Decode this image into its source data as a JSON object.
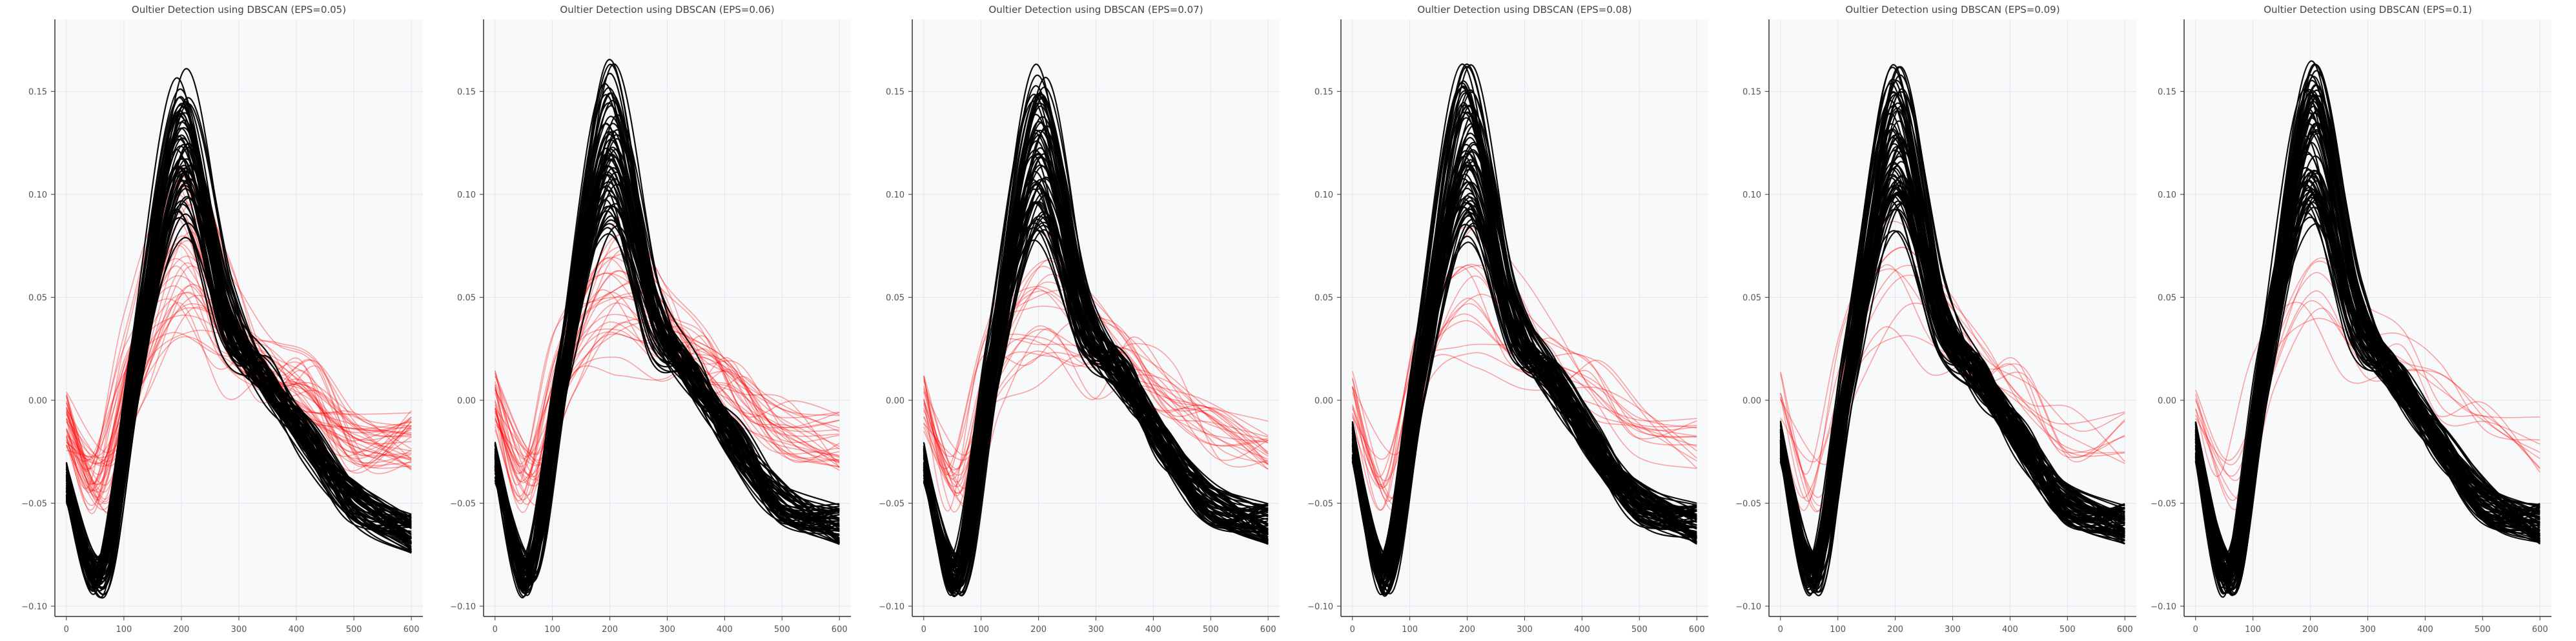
{
  "chart_data": [
    {
      "type": "line",
      "title": "Oultier Detection using DBSCAN (EPS=0.05)",
      "xlabel": "",
      "ylabel": "",
      "xlim": [
        -20,
        620
      ],
      "ylim": [
        -0.105,
        0.185
      ],
      "xticks": [
        "0",
        "100",
        "200",
        "300",
        "400",
        "500",
        "600"
      ],
      "yticks": [
        "−0.10",
        "−0.05",
        "0.00",
        "0.05",
        "0.10",
        "0.15"
      ],
      "grid": true,
      "series_colors": {
        "inlier": "#000000",
        "outlier": "#ff0000"
      },
      "series": [
        {
          "name": "",
          "role": "inlier",
          "count": 60,
          "points": [
            [
              0,
              -0.04
            ],
            [
              60,
              -0.085
            ],
            [
              120,
              0.02
            ],
            [
              200,
              0.15
            ],
            [
              280,
              0.05
            ],
            [
              350,
              0.01
            ],
            [
              420,
              -0.02
            ],
            [
              500,
              -0.05
            ],
            [
              600,
              -0.065
            ]
          ]
        },
        {
          "name": "",
          "role": "outlier",
          "count": 40,
          "points": [
            [
              0,
              -0.01
            ],
            [
              60,
              -0.04
            ],
            [
              120,
              0.02
            ],
            [
              200,
              0.08
            ],
            [
              280,
              0.04
            ],
            [
              350,
              0.015
            ],
            [
              420,
              0.005
            ],
            [
              500,
              -0.02
            ],
            [
              600,
              -0.02
            ]
          ]
        }
      ]
    },
    {
      "type": "line",
      "title": "Oultier Detection using DBSCAN (EPS=0.06)",
      "xlabel": "",
      "ylabel": "",
      "xlim": [
        -20,
        620
      ],
      "ylim": [
        -0.105,
        0.185
      ],
      "xticks": [
        "0",
        "100",
        "200",
        "300",
        "400",
        "500",
        "600"
      ],
      "yticks": [
        "−0.10",
        "−0.05",
        "0.00",
        "0.05",
        "0.10",
        "0.15"
      ],
      "grid": true,
      "series_colors": {
        "inlier": "#000000",
        "outlier": "#ff0000"
      },
      "series": [
        {
          "name": "",
          "role": "inlier",
          "count": 60,
          "points": [
            [
              0,
              -0.03
            ],
            [
              60,
              -0.085
            ],
            [
              120,
              0.02
            ],
            [
              200,
              0.15
            ],
            [
              280,
              0.05
            ],
            [
              350,
              0.01
            ],
            [
              420,
              -0.02
            ],
            [
              500,
              -0.05
            ],
            [
              600,
              -0.06
            ]
          ]
        },
        {
          "name": "",
          "role": "outlier",
          "count": 30,
          "points": [
            [
              0,
              0.0
            ],
            [
              60,
              -0.04
            ],
            [
              120,
              0.02
            ],
            [
              200,
              0.06
            ],
            [
              280,
              0.04
            ],
            [
              350,
              0.02
            ],
            [
              420,
              0.005
            ],
            [
              500,
              -0.015
            ],
            [
              600,
              -0.02
            ]
          ]
        }
      ]
    },
    {
      "type": "line",
      "title": "Oultier Detection using DBSCAN (EPS=0.07)",
      "xlabel": "",
      "ylabel": "",
      "xlim": [
        -20,
        620
      ],
      "ylim": [
        -0.105,
        0.185
      ],
      "xticks": [
        "0",
        "100",
        "200",
        "300",
        "400",
        "500",
        "600"
      ],
      "yticks": [
        "−0.10",
        "−0.05",
        "0.00",
        "0.05",
        "0.10",
        "0.15"
      ],
      "grid": true,
      "series_colors": {
        "inlier": "#000000",
        "outlier": "#ff0000"
      },
      "series": [
        {
          "name": "",
          "role": "inlier",
          "count": 65,
          "points": [
            [
              0,
              -0.03
            ],
            [
              60,
              -0.085
            ],
            [
              120,
              0.02
            ],
            [
              200,
              0.15
            ],
            [
              280,
              0.05
            ],
            [
              350,
              0.01
            ],
            [
              420,
              -0.02
            ],
            [
              500,
              -0.05
            ],
            [
              600,
              -0.06
            ]
          ]
        },
        {
          "name": "",
          "role": "outlier",
          "count": 22,
          "points": [
            [
              0,
              0.0
            ],
            [
              60,
              -0.04
            ],
            [
              120,
              0.02
            ],
            [
              200,
              0.05
            ],
            [
              280,
              0.04
            ],
            [
              350,
              0.02
            ],
            [
              420,
              0.005
            ],
            [
              500,
              -0.015
            ],
            [
              600,
              -0.02
            ]
          ]
        }
      ]
    },
    {
      "type": "line",
      "title": "Oultier Detection using DBSCAN (EPS=0.08)",
      "xlabel": "",
      "ylabel": "",
      "xlim": [
        -20,
        620
      ],
      "ylim": [
        -0.105,
        0.185
      ],
      "xticks": [
        "0",
        "100",
        "200",
        "300",
        "400",
        "500",
        "600"
      ],
      "yticks": [
        "−0.10",
        "−0.05",
        "0.00",
        "0.05",
        "0.10",
        "0.15"
      ],
      "grid": true,
      "series_colors": {
        "inlier": "#000000",
        "outlier": "#ff0000"
      },
      "series": [
        {
          "name": "",
          "role": "inlier",
          "count": 70,
          "points": [
            [
              0,
              -0.02
            ],
            [
              60,
              -0.085
            ],
            [
              120,
              0.02
            ],
            [
              200,
              0.15
            ],
            [
              280,
              0.05
            ],
            [
              350,
              0.01
            ],
            [
              420,
              -0.02
            ],
            [
              500,
              -0.05
            ],
            [
              600,
              -0.06
            ]
          ]
        },
        {
          "name": "",
          "role": "outlier",
          "count": 15,
          "points": [
            [
              0,
              0.0
            ],
            [
              60,
              -0.04
            ],
            [
              120,
              0.02
            ],
            [
              200,
              0.06
            ],
            [
              280,
              0.04
            ],
            [
              350,
              0.02
            ],
            [
              420,
              0.005
            ],
            [
              500,
              -0.015
            ],
            [
              600,
              -0.02
            ]
          ]
        }
      ]
    },
    {
      "type": "line",
      "title": "Oultier Detection using DBSCAN (EPS=0.09)",
      "xlabel": "",
      "ylabel": "",
      "xlim": [
        -20,
        620
      ],
      "ylim": [
        -0.105,
        0.185
      ],
      "xticks": [
        "0",
        "100",
        "200",
        "300",
        "400",
        "500",
        "600"
      ],
      "yticks": [
        "−0.10",
        "−0.05",
        "0.00",
        "0.05",
        "0.10",
        "0.15"
      ],
      "grid": true,
      "series_colors": {
        "inlier": "#000000",
        "outlier": "#ff0000"
      },
      "series": [
        {
          "name": "",
          "role": "inlier",
          "count": 72,
          "points": [
            [
              0,
              -0.02
            ],
            [
              60,
              -0.085
            ],
            [
              120,
              0.02
            ],
            [
              200,
              0.15
            ],
            [
              280,
              0.05
            ],
            [
              350,
              0.01
            ],
            [
              420,
              -0.02
            ],
            [
              500,
              -0.05
            ],
            [
              600,
              -0.06
            ]
          ]
        },
        {
          "name": "",
          "role": "outlier",
          "count": 10,
          "points": [
            [
              0,
              0.0
            ],
            [
              60,
              -0.04
            ],
            [
              120,
              0.02
            ],
            [
              200,
              0.06
            ],
            [
              280,
              0.04
            ],
            [
              350,
              0.02
            ],
            [
              420,
              0.005
            ],
            [
              500,
              -0.015
            ],
            [
              600,
              -0.02
            ]
          ]
        }
      ]
    },
    {
      "type": "line",
      "title": "Oultier Detection using DBSCAN (EPS=0.1)",
      "xlabel": "",
      "ylabel": "",
      "xlim": [
        -20,
        620
      ],
      "ylim": [
        -0.105,
        0.185
      ],
      "xticks": [
        "0",
        "100",
        "200",
        "300",
        "400",
        "500",
        "600"
      ],
      "yticks": [
        "−0.10",
        "−0.05",
        "0.00",
        "0.05",
        "0.10",
        "0.15"
      ],
      "grid": true,
      "series_colors": {
        "inlier": "#000000",
        "outlier": "#ff0000"
      },
      "series": [
        {
          "name": "",
          "role": "inlier",
          "count": 74,
          "points": [
            [
              0,
              -0.02
            ],
            [
              60,
              -0.085
            ],
            [
              120,
              0.02
            ],
            [
              200,
              0.15
            ],
            [
              280,
              0.05
            ],
            [
              350,
              0.01
            ],
            [
              420,
              -0.02
            ],
            [
              500,
              -0.05
            ],
            [
              600,
              -0.06
            ]
          ]
        },
        {
          "name": "",
          "role": "outlier",
          "count": 8,
          "points": [
            [
              0,
              0.0
            ],
            [
              60,
              -0.04
            ],
            [
              120,
              0.02
            ],
            [
              200,
              0.06
            ],
            [
              280,
              0.04
            ],
            [
              350,
              0.02
            ],
            [
              420,
              0.005
            ],
            [
              500,
              -0.015
            ],
            [
              600,
              -0.02
            ]
          ]
        }
      ]
    }
  ]
}
